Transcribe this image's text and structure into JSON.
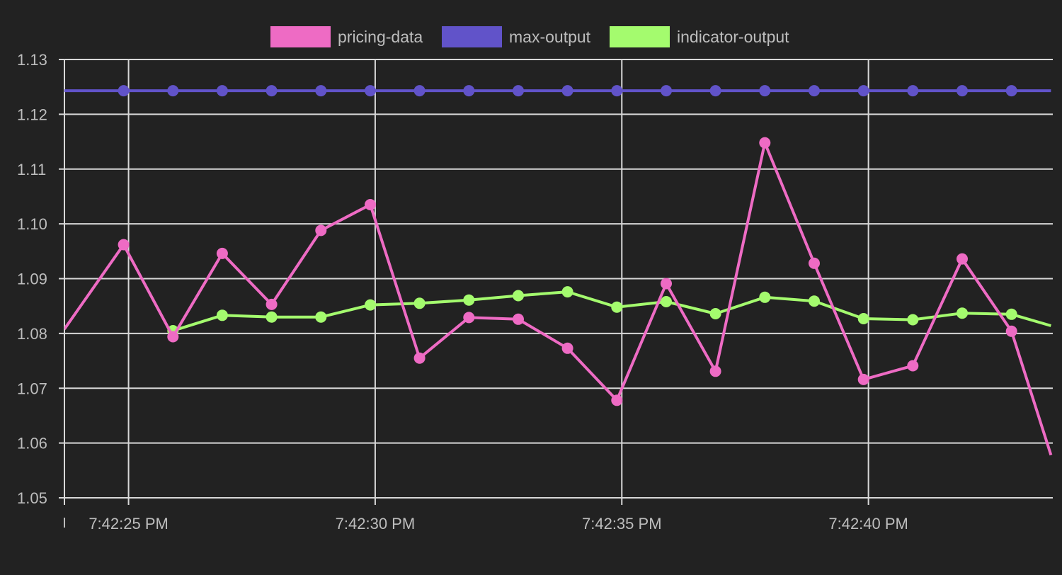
{
  "chart_data": {
    "type": "line",
    "title": "",
    "xlabel": "",
    "ylabel": "",
    "ylim": [
      1.05,
      1.13
    ],
    "yticks": [
      "1.13",
      "1.12",
      "1.11",
      "1.10",
      "1.09",
      "1.08",
      "1.07",
      "1.06",
      "1.05"
    ],
    "xticks": [
      "7:42:25 PM",
      "7:42:30 PM",
      "7:42:35 PM",
      "7:42:40 PM"
    ],
    "grid": true,
    "legend_position": "top-center",
    "x_unit": "seconds after 7:42:20 PM",
    "x_range": [
      3.7,
      23.7
    ],
    "series": [
      {
        "name": "pricing-data",
        "color": "#ee6bc4",
        "points": [
          [
            3.7,
            1.0808
          ],
          [
            4.9,
            1.0962
          ],
          [
            5.9,
            1.0794
          ],
          [
            6.9,
            1.0946
          ],
          [
            7.9,
            1.0853
          ],
          [
            8.9,
            1.0988
          ],
          [
            9.9,
            1.1035
          ],
          [
            10.9,
            1.0755
          ],
          [
            11.9,
            1.0829
          ],
          [
            12.9,
            1.0826
          ],
          [
            13.9,
            1.0773
          ],
          [
            14.9,
            1.0678
          ],
          [
            15.9,
            1.0891
          ],
          [
            16.9,
            1.0731
          ],
          [
            17.9,
            1.1148
          ],
          [
            18.9,
            1.0928
          ],
          [
            19.9,
            1.0716
          ],
          [
            20.9,
            1.0741
          ],
          [
            21.9,
            1.0936
          ],
          [
            22.9,
            1.0804
          ],
          [
            23.7,
            1.0578
          ]
        ],
        "markers_from_index": 1,
        "markers_to_index": 19
      },
      {
        "name": "max-output",
        "color": "#6153c9",
        "points": [
          [
            3.7,
            1.1243
          ],
          [
            4.9,
            1.1243
          ],
          [
            5.9,
            1.1243
          ],
          [
            6.9,
            1.1243
          ],
          [
            7.9,
            1.1243
          ],
          [
            8.9,
            1.1243
          ],
          [
            9.9,
            1.1243
          ],
          [
            10.9,
            1.1243
          ],
          [
            11.9,
            1.1243
          ],
          [
            12.9,
            1.1243
          ],
          [
            13.9,
            1.1243
          ],
          [
            14.9,
            1.1243
          ],
          [
            15.9,
            1.1243
          ],
          [
            16.9,
            1.1243
          ],
          [
            17.9,
            1.1243
          ],
          [
            18.9,
            1.1243
          ],
          [
            19.9,
            1.1243
          ],
          [
            20.9,
            1.1243
          ],
          [
            21.9,
            1.1243
          ],
          [
            22.9,
            1.1243
          ],
          [
            23.7,
            1.1243
          ]
        ],
        "markers_from_index": 1,
        "markers_to_index": 19
      },
      {
        "name": "indicator-output",
        "color": "#a4fb6e",
        "points": [
          [
            5.9,
            1.0805
          ],
          [
            6.9,
            1.0833
          ],
          [
            7.9,
            1.083
          ],
          [
            8.9,
            1.083
          ],
          [
            9.9,
            1.0852
          ],
          [
            10.9,
            1.0855
          ],
          [
            11.9,
            1.0861
          ],
          [
            12.9,
            1.0869
          ],
          [
            13.9,
            1.0876
          ],
          [
            14.9,
            1.0848
          ],
          [
            15.9,
            1.0858
          ],
          [
            16.9,
            1.0836
          ],
          [
            17.9,
            1.0866
          ],
          [
            18.9,
            1.0859
          ],
          [
            19.9,
            1.0827
          ],
          [
            20.9,
            1.0825
          ],
          [
            21.9,
            1.0837
          ],
          [
            22.9,
            1.0835
          ],
          [
            23.7,
            1.0814
          ]
        ],
        "markers_from_index": 0,
        "markers_to_index": 17
      }
    ]
  }
}
